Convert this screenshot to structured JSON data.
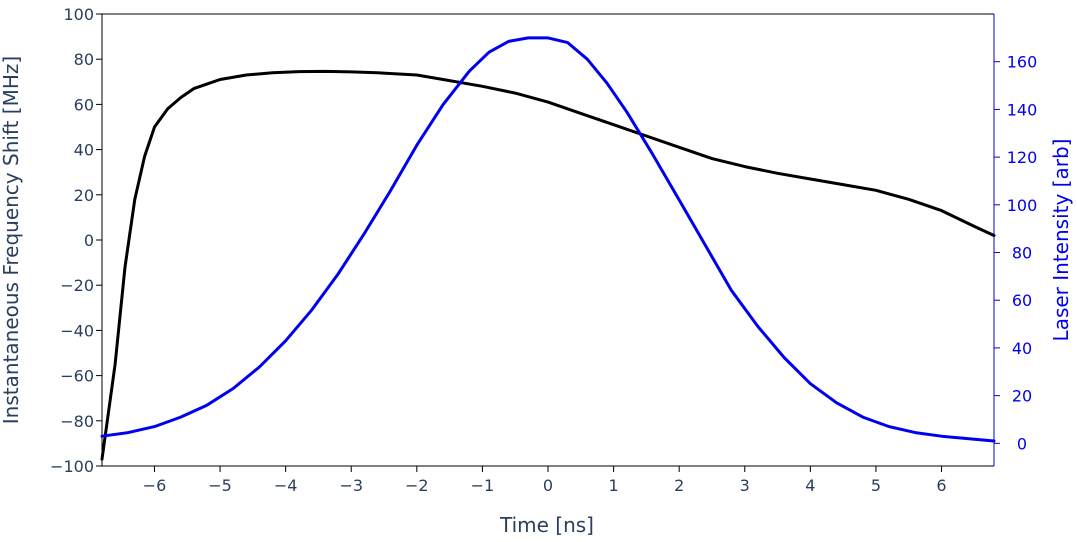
{
  "chart_data": {
    "type": "line",
    "xlabel": "Time [ns]",
    "ylabel": "Instantaneous Frequency Shift [MHz]",
    "y2label": "Laser Intensity [arb]",
    "xlim": [
      -6.8,
      6.8
    ],
    "ylim": [
      -100,
      100
    ],
    "y2lim": [
      -9.5,
      180
    ],
    "x_ticks": [
      -6,
      -5,
      -4,
      -3,
      -2,
      -1,
      0,
      1,
      2,
      3,
      4,
      5,
      6
    ],
    "x_tick_labels": [
      "−6",
      "−5",
      "−4",
      "−3",
      "−2",
      "−1",
      "0",
      "1",
      "2",
      "3",
      "4",
      "5",
      "6"
    ],
    "y_ticks": [
      -100,
      -80,
      -60,
      -40,
      -20,
      0,
      20,
      40,
      60,
      80,
      100
    ],
    "y_tick_labels": [
      "−100",
      "−80",
      "−60",
      "−40",
      "−20",
      "0",
      "20",
      "40",
      "60",
      "80",
      "100"
    ],
    "y2_ticks": [
      0,
      20,
      40,
      60,
      80,
      100,
      120,
      140,
      160
    ],
    "y2_tick_labels": [
      "0",
      "20",
      "40",
      "60",
      "80",
      "100",
      "120",
      "140",
      "160"
    ],
    "grid": false,
    "colors": {
      "axis_text": "#2a3f5f",
      "frequency_series": "#000000",
      "intensity_series": "#0000ee"
    },
    "series": [
      {
        "axis": "left",
        "color": "#000000",
        "x": [
          -6.8,
          -6.6,
          -6.45,
          -6.3,
          -6.15,
          -6.0,
          -5.8,
          -5.6,
          -5.4,
          -5.2,
          -5.0,
          -4.6,
          -4.2,
          -3.8,
          -3.4,
          -3.0,
          -2.6,
          -2.0,
          -1.6,
          -1.0,
          -0.5,
          0.0,
          0.5,
          1.0,
          1.5,
          2.0,
          2.5,
          3.0,
          3.5,
          4.0,
          4.5,
          5.0,
          5.5,
          6.0,
          6.5,
          6.8
        ],
        "y": [
          -97,
          -55,
          -12,
          18,
          37,
          50,
          58,
          63,
          67,
          69,
          71,
          73,
          74,
          74.5,
          74.6,
          74.4,
          74,
          73,
          71,
          68,
          65,
          61,
          56,
          51,
          46,
          41,
          36,
          32.5,
          29.5,
          27,
          24.5,
          22,
          18,
          13,
          6,
          2
        ]
      },
      {
        "axis": "right",
        "color": "#0000ee",
        "x": [
          -6.8,
          -6.4,
          -6.0,
          -5.6,
          -5.2,
          -4.8,
          -4.4,
          -4.0,
          -3.6,
          -3.2,
          -2.8,
          -2.4,
          -2.0,
          -1.6,
          -1.2,
          -0.9,
          -0.6,
          -0.3,
          0.0,
          0.3,
          0.6,
          0.9,
          1.2,
          1.6,
          2.0,
          2.4,
          2.8,
          3.2,
          3.6,
          4.0,
          4.4,
          4.8,
          5.2,
          5.6,
          6.0,
          6.4,
          6.8
        ],
        "y": [
          3,
          4.5,
          7,
          11,
          16,
          23,
          32,
          43,
          56,
          71,
          88,
          106,
          125,
          142,
          156,
          164,
          168.5,
          170,
          170,
          168,
          161,
          151,
          139,
          121,
          102,
          83,
          64,
          49,
          36,
          25,
          17,
          11,
          7,
          4.5,
          3,
          2,
          1
        ]
      }
    ]
  }
}
